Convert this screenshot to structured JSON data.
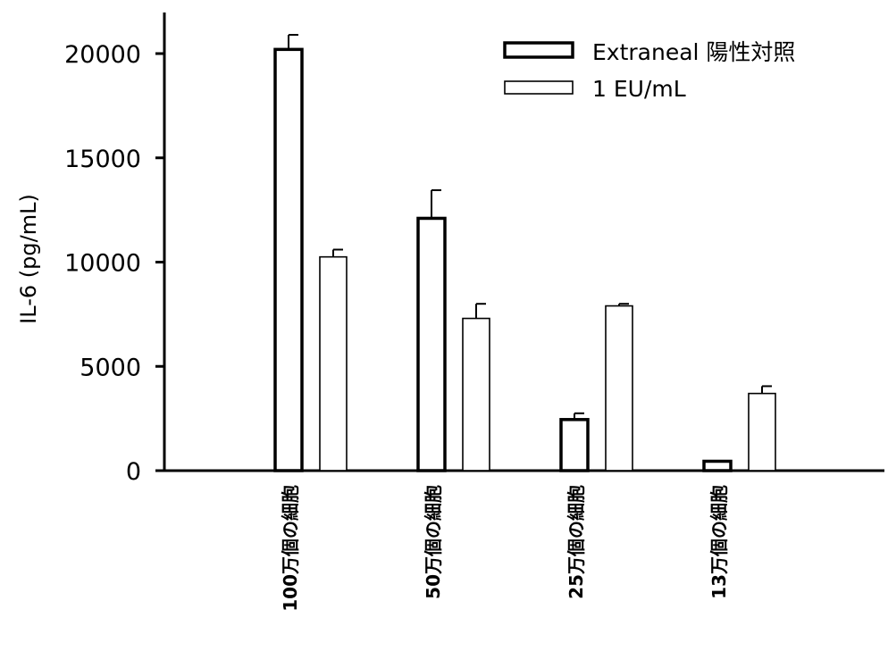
{
  "chart_data": {
    "type": "bar",
    "ylabel": "IL-6 (pg/mL)",
    "xlabel": "",
    "ylim": [
      0,
      22000
    ],
    "yticks": [
      0,
      5000,
      10000,
      15000,
      20000
    ],
    "grid": false,
    "legend_position": "top-right",
    "categories": [
      "100万個の細胞",
      "50万個の細胞",
      "25万個の細胞",
      "13万個の細胞"
    ],
    "series": [
      {
        "name": "Extraneal 陽性対照",
        "values": [
          20200,
          12100,
          2450,
          450
        ],
        "errors": [
          700,
          1350,
          300,
          0
        ],
        "color": "#ffffff",
        "stroke": "#000000",
        "stroke_style": "heavy"
      },
      {
        "name": "1 EU/mL",
        "values": [
          10250,
          7300,
          7900,
          3700
        ],
        "errors": [
          350,
          700,
          100,
          350
        ],
        "color": "#ffffff",
        "stroke": "#000000",
        "stroke_style": "thin"
      }
    ]
  }
}
